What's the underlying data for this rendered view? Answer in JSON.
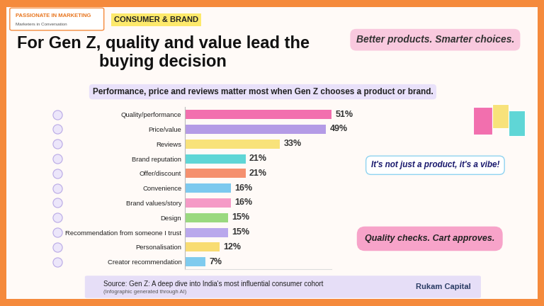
{
  "chart_data": {
    "type": "bar",
    "orientation": "horizontal",
    "title": "For Gen Z, quality and value lead the buying decision",
    "subtitle": "Performance, price and reviews matter most when Gen Z chooses a product or brand.",
    "categories": [
      "Quality/performance",
      "Price/value",
      "Reviews",
      "Brand reputation",
      "Offer/discount",
      "Convenience",
      "Brand values/story",
      "Design",
      "Recommendation from someone I trust",
      "Personalisation",
      "Creator recommendation"
    ],
    "values": [
      51,
      49,
      33,
      21,
      21,
      16,
      16,
      15,
      15,
      12,
      7
    ],
    "value_labels": [
      "51%",
      "49%",
      "33%",
      "21%",
      "21%",
      "16%",
      "16%",
      "15%",
      "15%",
      "12%",
      "7%"
    ],
    "colors": [
      "#f26fae",
      "#b49be6",
      "#f8e27a",
      "#5fd6d6",
      "#f5906e",
      "#7cc9ee",
      "#f59ac6",
      "#9ad97f",
      "#b9a8ec",
      "#f8dc72",
      "#7fcbee"
    ],
    "xlim": [
      0,
      51
    ],
    "xticks": [],
    "data_labels": true,
    "tick_labels": "y",
    "annotations": [
      "PASSIONATE IN MARKETING",
      "Marketers in Conversation",
      "CONSUMER & BRAND",
      "Better products. Smarter choices.",
      "It's not just a product, it's a vibe!",
      "Quality checks. Cart approves.",
      "Source: Gen Z: A deep dive into India's most influential consumer cohort",
      "(Infographic generated through AI)",
      "Rukam Capital"
    ]
  }
}
